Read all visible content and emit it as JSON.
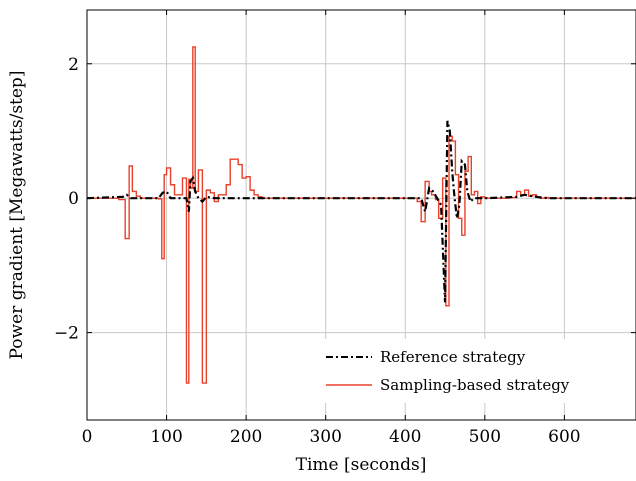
{
  "chart_data": {
    "type": "line",
    "title": "",
    "xlabel": "Time [seconds]",
    "ylabel": "Power gradient [Megawatts/step]",
    "xlim": [
      0,
      690
    ],
    "ylim": [
      -3.3,
      2.8
    ],
    "xticks": [
      0,
      100,
      200,
      300,
      400,
      500,
      600
    ],
    "yticks": [
      -2,
      0,
      2
    ],
    "ytick_labels": [
      "−2",
      "0",
      "2"
    ],
    "grid": true,
    "legend_position": "bottom-right",
    "series": [
      {
        "name": "Reference strategy",
        "color": "#000000",
        "style": "dash-dot",
        "x": [
          0,
          45,
          50,
          55,
          90,
          95,
          100,
          105,
          125,
          128,
          130,
          133,
          136,
          140,
          145,
          150,
          160,
          170,
          180,
          200,
          220,
          420,
          425,
          430,
          435,
          440,
          445,
          450,
          453,
          456,
          459,
          462,
          465,
          468,
          471,
          475,
          478,
          482,
          486,
          490,
          495,
          500,
          540,
          550,
          560,
          570,
          580,
          690
        ],
        "y": [
          0,
          0.02,
          0.05,
          0,
          0,
          0.08,
          0.1,
          0,
          0,
          -0.2,
          0.25,
          0.3,
          0.1,
          0,
          -0.05,
          0.02,
          0,
          0,
          0,
          0,
          0,
          0,
          -0.2,
          0.15,
          0.1,
          0,
          -0.1,
          -1.55,
          1.15,
          1.0,
          0.4,
          0.0,
          -0.3,
          -0.1,
          0.55,
          0.5,
          0.1,
          -0.05,
          0,
          0,
          0,
          0,
          0.02,
          0.05,
          0.03,
          0.01,
          0,
          0
        ]
      },
      {
        "name": "Sampling-based strategy",
        "color": "#e8412b",
        "style": "step",
        "x": [
          0,
          40,
          48,
          53,
          57,
          62,
          67,
          90,
          94,
          97,
          100,
          105,
          110,
          120,
          125,
          128,
          130,
          133,
          136,
          140,
          145,
          150,
          155,
          160,
          165,
          170,
          175,
          180,
          190,
          195,
          200,
          205,
          210,
          215,
          220,
          415,
          420,
          425,
          430,
          433,
          438,
          442,
          447,
          451,
          455,
          459,
          463,
          467,
          471,
          475,
          479,
          483,
          487,
          491,
          495,
          500,
          505,
          510,
          520,
          530,
          540,
          545,
          550,
          555,
          560,
          565,
          570,
          575,
          580,
          690
        ],
        "y": [
          0,
          -0.02,
          -0.6,
          0.48,
          0.1,
          0.03,
          0,
          -0.01,
          -0.9,
          0.35,
          0.45,
          0.2,
          0.05,
          0.3,
          -2.75,
          0.28,
          0.15,
          2.25,
          0.1,
          0.42,
          -2.75,
          0.12,
          0.08,
          -0.05,
          0.05,
          0.05,
          0.2,
          0.58,
          0.5,
          0.3,
          0.32,
          0.12,
          0.05,
          0.02,
          0,
          -0.05,
          -0.35,
          0.25,
          0.1,
          0.05,
          -0.02,
          -0.3,
          0.3,
          -1.6,
          0.92,
          0.85,
          0.35,
          -0.3,
          -0.55,
          0.4,
          0.62,
          0.05,
          0.1,
          -0.08,
          0.02,
          0,
          0,
          0,
          0,
          0.01,
          0.1,
          0.05,
          0.12,
          0.03,
          0.05,
          0.02,
          0,
          0.01,
          0,
          0
        ]
      }
    ]
  }
}
